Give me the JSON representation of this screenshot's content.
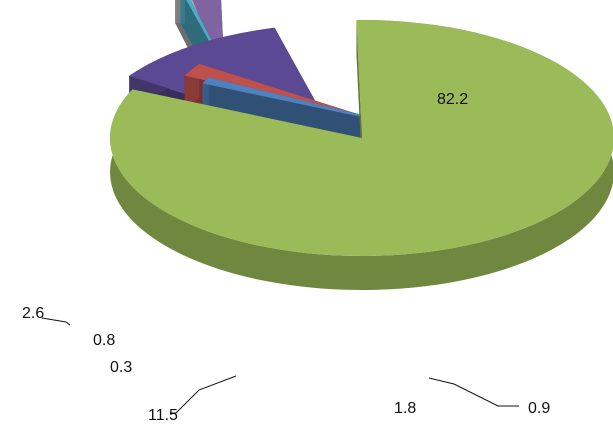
{
  "chart_data": {
    "type": "pie",
    "title": "",
    "labels": [
      "82.2",
      "0.9",
      "1.8",
      "11.5",
      "0.3",
      "0.8",
      "2.6"
    ],
    "values": [
      82.2,
      0.9,
      1.8,
      11.5,
      0.3,
      0.8,
      2.6
    ],
    "colors": [
      "#9bbb59",
      "#4f81bd",
      "#c0504d",
      "#5b4a93",
      "#4bacc6",
      "#b0b0b0",
      "#8064a2"
    ],
    "exploded": true,
    "three_d": true
  }
}
